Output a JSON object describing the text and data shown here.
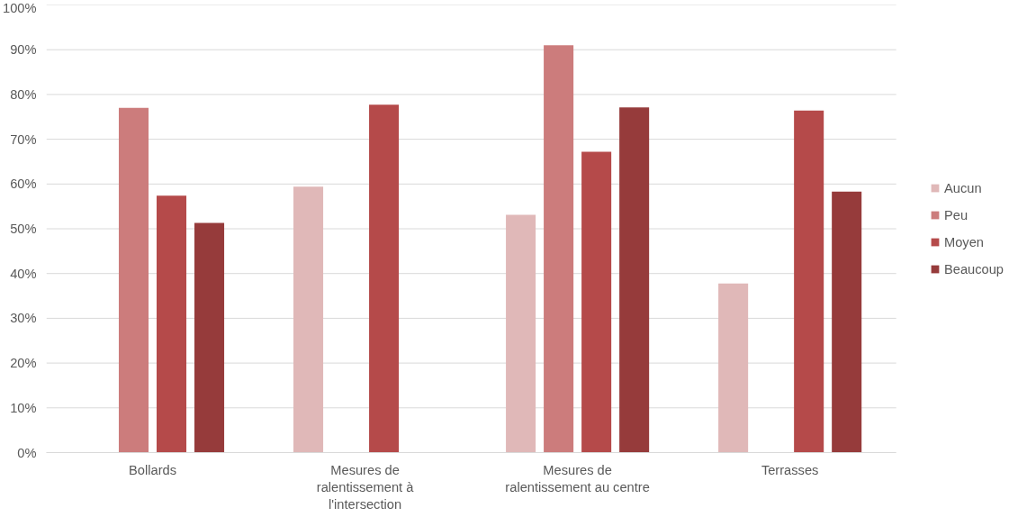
{
  "chart_data": {
    "type": "bar",
    "categories": [
      "Bollards",
      "Mesures de ralentissement à l'intersection",
      "Mesures de ralentissement au centre",
      "Terrasses"
    ],
    "series": [
      {
        "name": "Aucun",
        "color": "#e0b8b8",
        "values": [
          null,
          59.4,
          53.1,
          37.8
        ]
      },
      {
        "name": "Peu",
        "color": "#cc7c7c",
        "values": [
          77,
          null,
          91,
          null
        ]
      },
      {
        "name": "Moyen",
        "color": "#b54a4a",
        "values": [
          57.4,
          77.7,
          67.2,
          76.4
        ]
      },
      {
        "name": "Beaucoup",
        "color": "#963b3b",
        "values": [
          51.3,
          null,
          77.1,
          58.3
        ]
      }
    ],
    "ylim": [
      0,
      100
    ],
    "yticks": [
      {
        "value": 0,
        "label": "0%"
      },
      {
        "value": 10,
        "label": "10%"
      },
      {
        "value": 20,
        "label": "20%"
      },
      {
        "value": 30,
        "label": "30%"
      },
      {
        "value": 40,
        "label": "40%"
      },
      {
        "value": 50,
        "label": "50%"
      },
      {
        "value": 60,
        "label": "60%"
      },
      {
        "value": 70,
        "label": "70%"
      },
      {
        "value": 80,
        "label": "80%"
      },
      {
        "value": 90,
        "label": "90%"
      },
      {
        "value": 100,
        "label": "100%"
      }
    ],
    "grid": "y",
    "legend": "right"
  }
}
